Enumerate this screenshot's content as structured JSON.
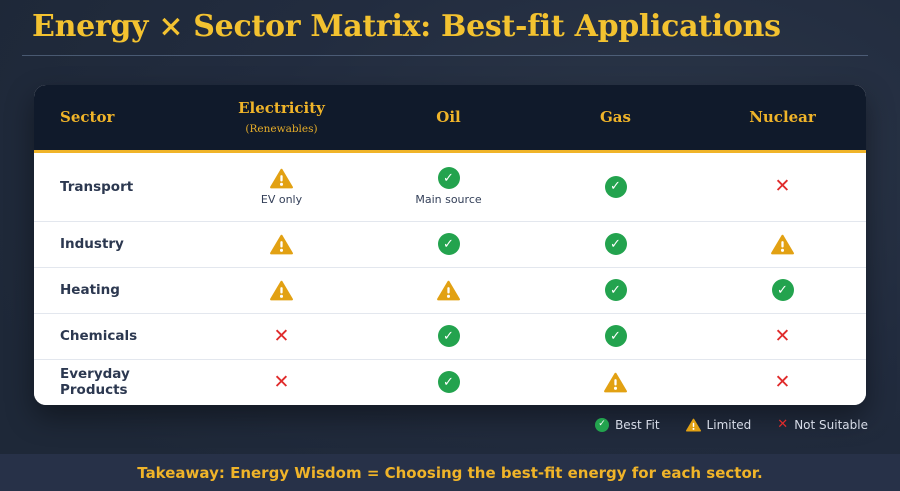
{
  "page": {
    "title": "Energy × Sector Matrix: Best-fit Applications",
    "takeaway": "Takeaway: Energy Wisdom = Choosing the best-fit energy for each sector."
  },
  "colors": {
    "background": "#222c3f",
    "card_header": "#101a2b",
    "gold_accent": "#f0b429",
    "best_fit": "#23a34e",
    "limited": "#e2a113",
    "not_suitable": "#e02b2b"
  },
  "icons": {
    "best_fit": {
      "name": "check-circle-icon",
      "glyph": "✓",
      "color": "#23a34e"
    },
    "limited": {
      "name": "warning-triangle-icon",
      "glyph": "!",
      "color": "#e2a113"
    },
    "not_suitable": {
      "name": "cross-icon",
      "glyph": "✕",
      "color": "#e02b2b"
    }
  },
  "table": {
    "sector_header": "Sector",
    "columns": [
      {
        "label": "Electricity",
        "sublabel": "(Renewables)"
      },
      {
        "label": "Oil",
        "sublabel": ""
      },
      {
        "label": "Gas",
        "sublabel": ""
      },
      {
        "label": "Nuclear",
        "sublabel": ""
      }
    ],
    "rows": [
      {
        "sector": "Transport",
        "cells": [
          {
            "status": "limited",
            "note": "EV only"
          },
          {
            "status": "best_fit",
            "note": "Main source"
          },
          {
            "status": "best_fit",
            "note": ""
          },
          {
            "status": "not_suitable",
            "note": ""
          }
        ]
      },
      {
        "sector": "Industry",
        "cells": [
          {
            "status": "limited",
            "note": ""
          },
          {
            "status": "best_fit",
            "note": ""
          },
          {
            "status": "best_fit",
            "note": ""
          },
          {
            "status": "limited",
            "note": ""
          }
        ]
      },
      {
        "sector": "Heating",
        "cells": [
          {
            "status": "limited",
            "note": ""
          },
          {
            "status": "limited",
            "note": ""
          },
          {
            "status": "best_fit",
            "note": ""
          },
          {
            "status": "best_fit",
            "note": ""
          }
        ]
      },
      {
        "sector": "Chemicals",
        "cells": [
          {
            "status": "not_suitable",
            "note": ""
          },
          {
            "status": "best_fit",
            "note": ""
          },
          {
            "status": "best_fit",
            "note": ""
          },
          {
            "status": "not_suitable",
            "note": ""
          }
        ]
      },
      {
        "sector": "Everyday Products",
        "cells": [
          {
            "status": "not_suitable",
            "note": ""
          },
          {
            "status": "best_fit",
            "note": ""
          },
          {
            "status": "limited",
            "note": ""
          },
          {
            "status": "not_suitable",
            "note": ""
          }
        ]
      }
    ]
  },
  "legend": [
    {
      "status": "best_fit",
      "label": "Best Fit"
    },
    {
      "status": "limited",
      "label": "Limited"
    },
    {
      "status": "not_suitable",
      "label": "Not Suitable"
    }
  ]
}
